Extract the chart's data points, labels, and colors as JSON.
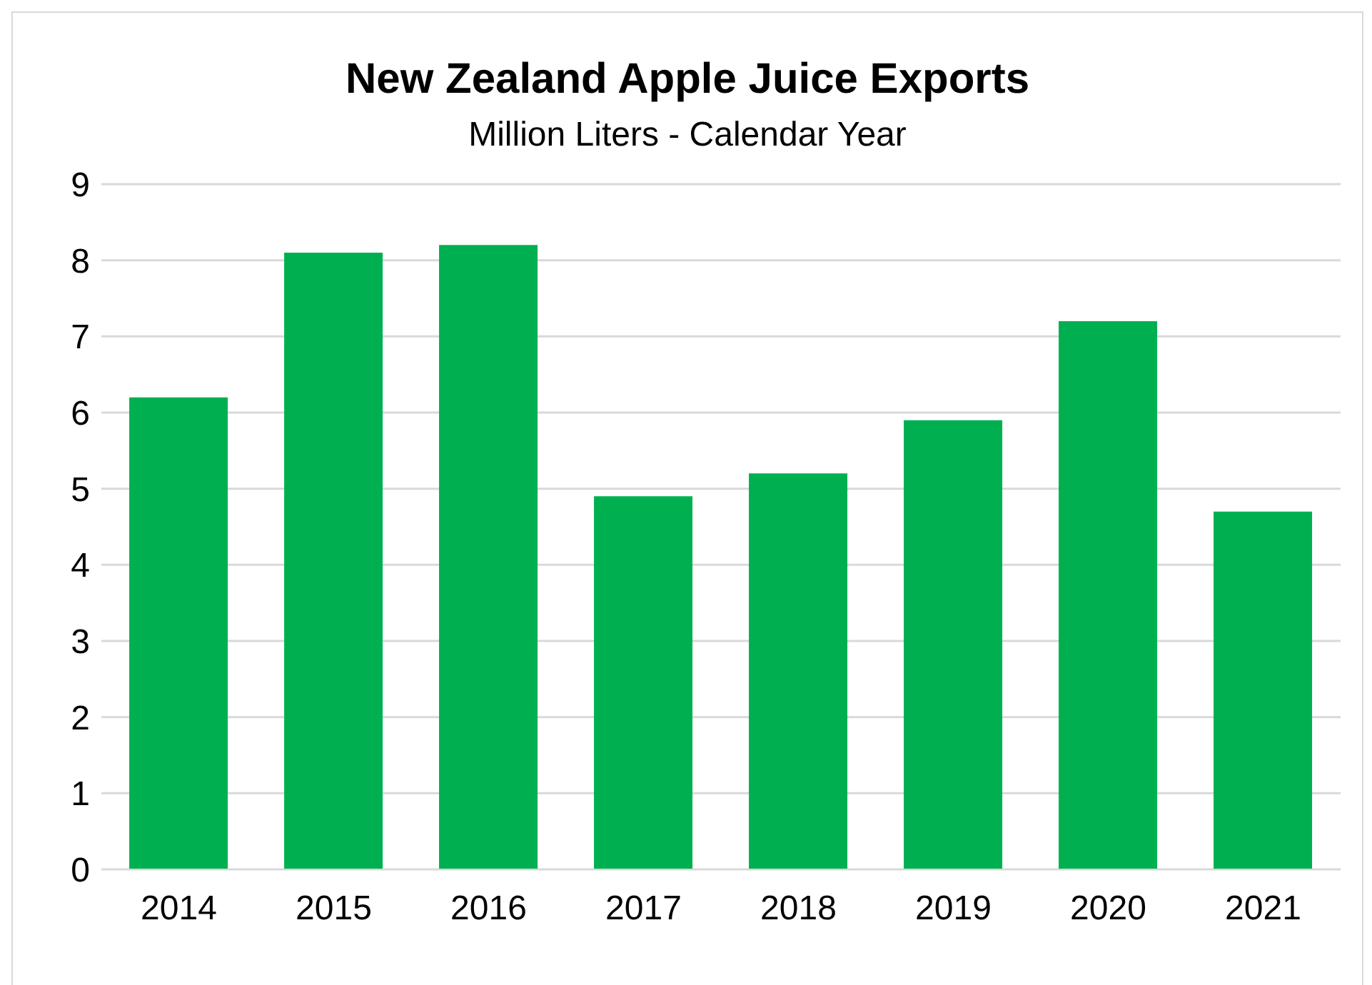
{
  "chart_data": {
    "type": "bar",
    "title": "New Zealand Apple Juice Exports",
    "subtitle": "Million Liters - Calendar Year",
    "categories": [
      "2014",
      "2015",
      "2016",
      "2017",
      "2018",
      "2019",
      "2020",
      "2021"
    ],
    "values": [
      6.2,
      8.1,
      8.2,
      4.9,
      5.2,
      5.9,
      7.2,
      4.7
    ],
    "color": "#00b050",
    "ylim": [
      0,
      9
    ],
    "yticks": [
      0,
      1,
      2,
      3,
      4,
      5,
      6,
      7,
      8,
      9
    ],
    "grid": "y"
  }
}
